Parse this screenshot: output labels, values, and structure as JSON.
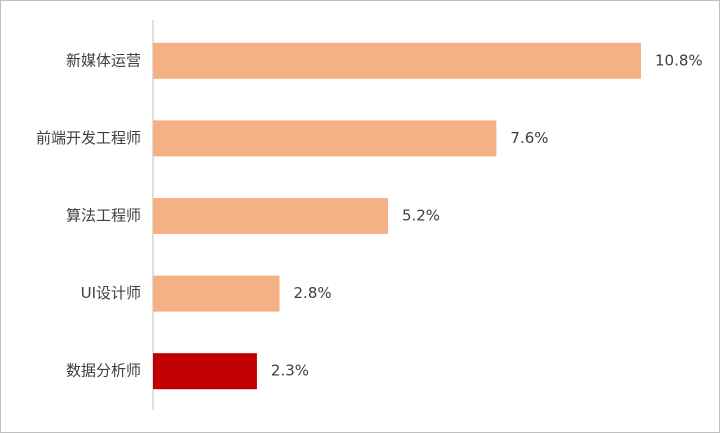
{
  "chart_data": {
    "type": "bar",
    "orientation": "horizontal",
    "categories": [
      "新媒体运营",
      "前端开发工程师",
      "算法工程师",
      "UI设计师",
      "数据分析师"
    ],
    "values": [
      10.8,
      7.6,
      5.2,
      2.8,
      2.3
    ],
    "value_labels": [
      "10.8%",
      "7.6%",
      "5.2%",
      "2.8%",
      "2.3%"
    ],
    "colors": [
      "#f4b183",
      "#f4b183",
      "#f4b183",
      "#f4b183",
      "#c00000"
    ]
  }
}
